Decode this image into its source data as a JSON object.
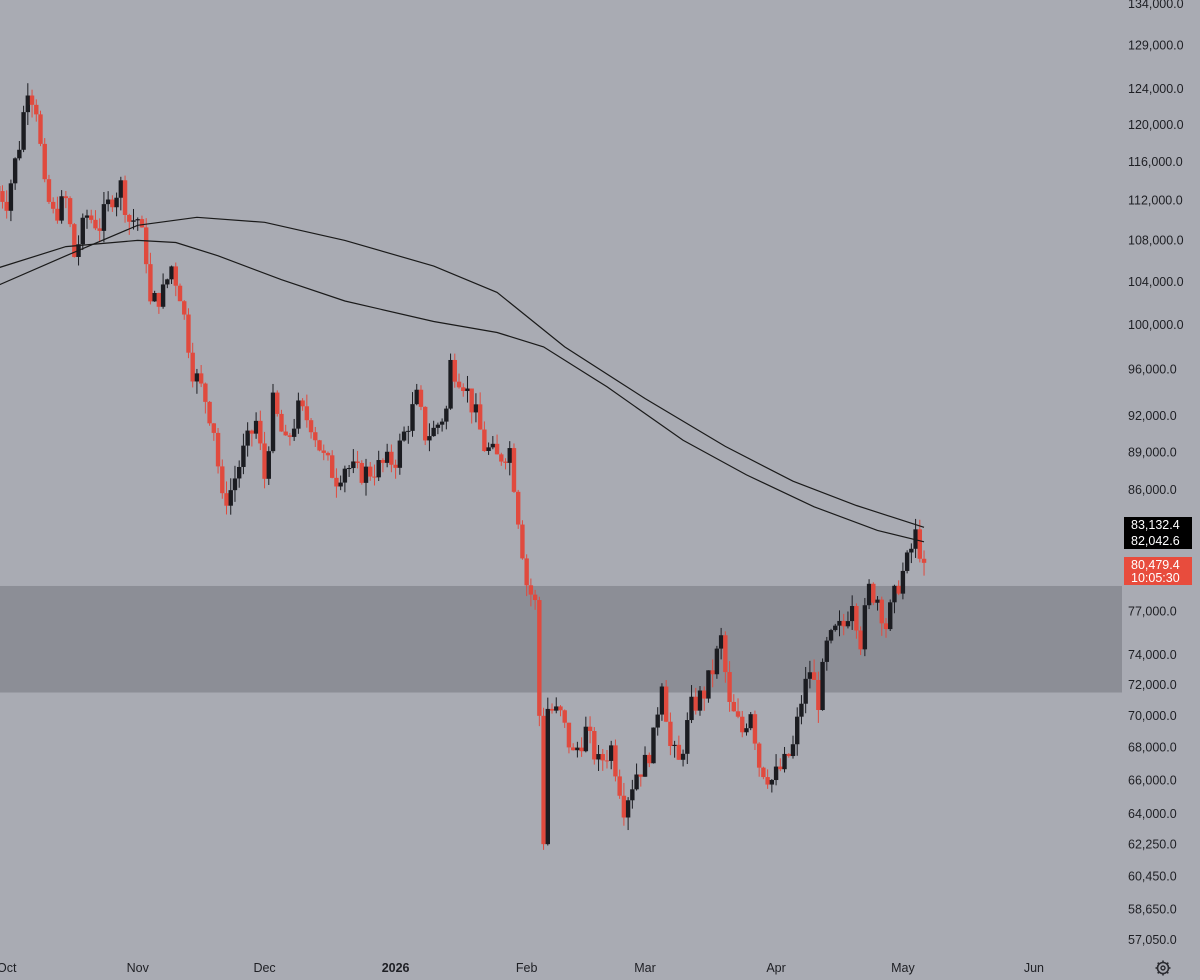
{
  "chart_data": {
    "type": "candlestick",
    "title": "",
    "price_axis": {
      "scale": "log",
      "range": [
        56000,
        135000
      ],
      "ticks": [
        {
          "value": 134000,
          "label": "134,000.0"
        },
        {
          "value": 129000,
          "label": "129,000.0"
        },
        {
          "value": 124000,
          "label": "124,000.0"
        },
        {
          "value": 120000,
          "label": "120,000.0"
        },
        {
          "value": 116000,
          "label": "116,000.0"
        },
        {
          "value": 112000,
          "label": "112,000.0"
        },
        {
          "value": 108000,
          "label": "108,000.0"
        },
        {
          "value": 104000,
          "label": "104,000.0"
        },
        {
          "value": 100000,
          "label": "100,000.0"
        },
        {
          "value": 96000,
          "label": "96,000.0"
        },
        {
          "value": 92000,
          "label": "92,000.0"
        },
        {
          "value": 89000,
          "label": "89,000.0"
        },
        {
          "value": 86000,
          "label": "86,000.0"
        },
        {
          "value": 77000,
          "label": "77,000.0"
        },
        {
          "value": 74000,
          "label": "74,000.0"
        },
        {
          "value": 72000,
          "label": "72,000.0"
        },
        {
          "value": 70000,
          "label": "70,000.0"
        },
        {
          "value": 68000,
          "label": "68,000.0"
        },
        {
          "value": 66000,
          "label": "66,000.0"
        },
        {
          "value": 64000,
          "label": "64,000.0"
        },
        {
          "value": 62250,
          "label": "62,250.0"
        },
        {
          "value": 60450,
          "label": "60,450.0"
        },
        {
          "value": 58650,
          "label": "58,650.0"
        },
        {
          "value": 57050,
          "label": "57,050.0"
        }
      ]
    },
    "time_axis": {
      "range": [
        "2025-09-28",
        "2026-06-10"
      ],
      "ticks": [
        {
          "date": "2025-10-01",
          "label": "Oct",
          "bold": false
        },
        {
          "date": "2025-11-01",
          "label": "Nov",
          "bold": false
        },
        {
          "date": "2025-12-01",
          "label": "Dec",
          "bold": false
        },
        {
          "date": "2026-01-01",
          "label": "2026",
          "bold": true
        },
        {
          "date": "2026-02-01",
          "label": "Feb",
          "bold": false
        },
        {
          "date": "2026-03-01",
          "label": "Mar",
          "bold": false
        },
        {
          "date": "2026-04-01",
          "label": "Apr",
          "bold": false
        },
        {
          "date": "2026-05-01",
          "label": "May",
          "bold": false
        },
        {
          "date": "2026-06-01",
          "label": "Jun",
          "bold": false
        }
      ]
    },
    "zone": {
      "from": 71500,
      "to": 78800,
      "color": "#8c8e96"
    },
    "price_tags": [
      {
        "value": 83132.4,
        "label": "83,132.4",
        "color": "#000000"
      },
      {
        "value": 82042.6,
        "label": "82,042.6",
        "color": "#000000"
      },
      {
        "value": 80479.4,
        "label": "80,479.4",
        "sub": "10:05:30",
        "color": "#e84c3d"
      }
    ],
    "colors": {
      "up": "#1b1c21",
      "down": "#e04a3e",
      "ma": "#1a1a1a",
      "background": "#a9abb3"
    },
    "moving_averages": [
      {
        "points": [
          [
            "2025-09-28",
            103500
          ],
          [
            "2025-10-15",
            106500
          ],
          [
            "2025-11-01",
            109500
          ],
          [
            "2025-11-15",
            110300
          ],
          [
            "2025-12-01",
            109800
          ],
          [
            "2025-12-20",
            108000
          ],
          [
            "2026-01-10",
            105500
          ],
          [
            "2026-01-25",
            103000
          ],
          [
            "2026-02-10",
            98000
          ],
          [
            "2026-03-01",
            93500
          ],
          [
            "2026-03-20",
            89500
          ],
          [
            "2026-04-05",
            86700
          ],
          [
            "2026-04-20",
            84800
          ],
          [
            "2026-05-06",
            83132.4
          ]
        ]
      },
      {
        "points": [
          [
            "2025-09-28",
            105200
          ],
          [
            "2025-10-15",
            107400
          ],
          [
            "2025-11-01",
            108000
          ],
          [
            "2025-11-10",
            107800
          ],
          [
            "2025-11-20",
            106500
          ],
          [
            "2025-12-05",
            104200
          ],
          [
            "2025-12-20",
            102200
          ],
          [
            "2026-01-10",
            100300
          ],
          [
            "2026-01-25",
            99300
          ],
          [
            "2026-02-05",
            98000
          ],
          [
            "2026-02-20",
            94500
          ],
          [
            "2026-03-10",
            90000
          ],
          [
            "2026-03-25",
            87200
          ],
          [
            "2026-04-10",
            84700
          ],
          [
            "2026-04-25",
            82900
          ],
          [
            "2026-05-06",
            82042.6
          ]
        ]
      }
    ],
    "candle_path": [
      [
        "2025-09-28",
        113500
      ],
      [
        "2025-10-01",
        112000
      ],
      [
        "2025-10-04",
        118000
      ],
      [
        "2025-10-06",
        124500
      ],
      [
        "2025-10-08",
        122000
      ],
      [
        "2025-10-10",
        113000
      ],
      [
        "2025-10-12",
        110500
      ],
      [
        "2025-10-15",
        112000
      ],
      [
        "2025-10-17",
        106500
      ],
      [
        "2025-10-20",
        110500
      ],
      [
        "2025-10-23",
        109500
      ],
      [
        "2025-10-26",
        112500
      ],
      [
        "2025-10-28",
        113500
      ],
      [
        "2025-10-30",
        110000
      ],
      [
        "2025-11-01",
        110200
      ],
      [
        "2025-11-03",
        106500
      ],
      [
        "2025-11-04",
        101800
      ],
      [
        "2025-11-07",
        103000
      ],
      [
        "2025-11-09",
        105500
      ],
      [
        "2025-11-11",
        103000
      ],
      [
        "2025-11-14",
        96000
      ],
      [
        "2025-11-17",
        93500
      ],
      [
        "2025-11-19",
        91000
      ],
      [
        "2025-11-21",
        85000
      ],
      [
        "2025-11-23",
        86000
      ],
      [
        "2025-11-26",
        89000
      ],
      [
        "2025-11-29",
        91500
      ],
      [
        "2025-12-01",
        87000
      ],
      [
        "2025-12-03",
        93000
      ],
      [
        "2025-12-06",
        89500
      ],
      [
        "2025-12-09",
        92500
      ],
      [
        "2025-12-12",
        91500
      ],
      [
        "2025-12-15",
        88500
      ],
      [
        "2025-12-18",
        87000
      ],
      [
        "2025-12-20",
        88000
      ],
      [
        "2025-12-23",
        87300
      ],
      [
        "2025-12-26",
        87500
      ],
      [
        "2025-12-29",
        88000
      ],
      [
        "2026-01-01",
        88500
      ],
      [
        "2026-01-04",
        91500
      ],
      [
        "2026-01-06",
        93500
      ],
      [
        "2026-01-08",
        90500
      ],
      [
        "2026-01-10",
        90800
      ],
      [
        "2026-01-13",
        92500
      ],
      [
        "2026-01-14",
        96500
      ],
      [
        "2026-01-17",
        95000
      ],
      [
        "2026-01-20",
        92000
      ],
      [
        "2026-01-22",
        89500
      ],
      [
        "2026-01-25",
        88500
      ],
      [
        "2026-01-28",
        89300
      ],
      [
        "2026-01-30",
        84000
      ],
      [
        "2026-02-01",
        79000
      ],
      [
        "2026-02-03",
        77500
      ],
      [
        "2026-02-05",
        62600
      ],
      [
        "2026-02-06",
        70500
      ],
      [
        "2026-02-09",
        70000
      ],
      [
        "2026-02-12",
        67500
      ],
      [
        "2026-02-15",
        69000
      ],
      [
        "2026-02-18",
        67000
      ],
      [
        "2026-02-21",
        68000
      ],
      [
        "2026-02-24",
        64500
      ],
      [
        "2026-02-27",
        66500
      ],
      [
        "2026-03-01",
        67000
      ],
      [
        "2026-03-03",
        68500
      ],
      [
        "2026-03-05",
        72500
      ],
      [
        "2026-03-07",
        68000
      ],
      [
        "2026-03-09",
        67000
      ],
      [
        "2026-03-12",
        70500
      ],
      [
        "2026-03-15",
        71500
      ],
      [
        "2026-03-17",
        73000
      ],
      [
        "2026-03-19",
        75000
      ],
      [
        "2026-03-21",
        70500
      ],
      [
        "2026-03-24",
        69000
      ],
      [
        "2026-03-26",
        70500
      ],
      [
        "2026-03-28",
        67000
      ],
      [
        "2026-03-31",
        66000
      ],
      [
        "2026-04-03",
        67000
      ],
      [
        "2026-04-05",
        68000
      ],
      [
        "2026-04-07",
        71000
      ],
      [
        "2026-04-09",
        73000
      ],
      [
        "2026-04-11",
        71000
      ],
      [
        "2026-04-13",
        74500
      ],
      [
        "2026-04-15",
        75500
      ],
      [
        "2026-04-17",
        76000
      ],
      [
        "2026-04-19",
        78000
      ],
      [
        "2026-04-21",
        75000
      ],
      [
        "2026-04-23",
        78500
      ],
      [
        "2026-04-25",
        78000
      ],
      [
        "2026-04-27",
        76000
      ],
      [
        "2026-04-30",
        79000
      ],
      [
        "2026-05-02",
        80500
      ],
      [
        "2026-05-04",
        82500
      ],
      [
        "2026-05-05",
        81500
      ],
      [
        "2026-05-06",
        80479.4
      ]
    ]
  },
  "footer": {
    "settings_icon": "gear-icon"
  }
}
